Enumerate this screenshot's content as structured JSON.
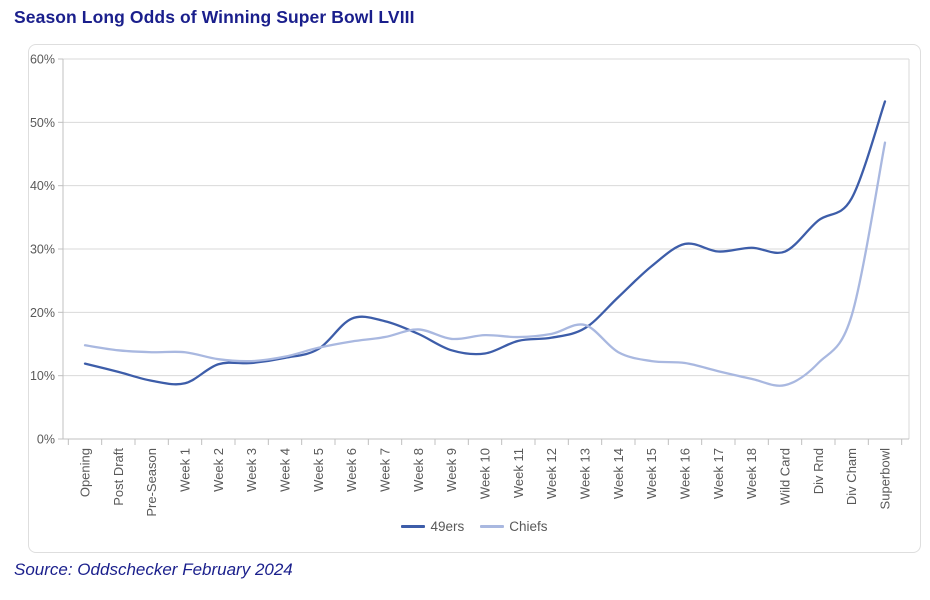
{
  "page": {
    "title": "Season Long Odds of Winning Super Bowl LVIII",
    "source": "Source: Oddschecker February 2024"
  },
  "colors": {
    "title_navy": "#1a1f8c",
    "axis_text": "#595959",
    "gridline": "#dadada",
    "axis_line": "#c0c0c0",
    "card_border": "#dedede"
  },
  "chart_data": {
    "type": "line",
    "title": "Season Long Odds of Winning Super Bowl LVIII",
    "smooth": true,
    "grid": true,
    "legend_position": "bottom",
    "x_label_rotation": -90,
    "ylim": [
      0,
      60
    ],
    "y_tick_step": 10,
    "y_tick_labels": [
      "0%",
      "10%",
      "20%",
      "30%",
      "40%",
      "50%",
      "60%"
    ],
    "categories": [
      "Opening",
      "Post Draft",
      "Pre-Season",
      "Week 1",
      "Week 2",
      "Week 3",
      "Week 4",
      "Week 5",
      "Week 6",
      "Week 7",
      "Week 8",
      "Week 9",
      "Week 10",
      "Week 11",
      "Week 12",
      "Week 13",
      "Week 14",
      "Week 15",
      "Week 16",
      "Week 17",
      "Week 18",
      "Wild Card",
      "Div Rnd",
      "Div Cham",
      "Superbowl"
    ],
    "series": [
      {
        "name": "49ers",
        "color": "#3d5da9",
        "values": [
          11.9,
          10.6,
          9.2,
          8.8,
          11.8,
          12.0,
          12.8,
          14.2,
          19.0,
          18.6,
          16.6,
          14.0,
          13.5,
          15.5,
          16.0,
          17.5,
          22.4,
          27.3,
          30.8,
          29.6,
          30.2,
          29.6,
          34.5,
          38.0,
          53.3
        ]
      },
      {
        "name": "Chiefs",
        "color": "#a9b8e0",
        "values": [
          14.8,
          14.0,
          13.7,
          13.7,
          12.6,
          12.3,
          13.0,
          14.4,
          15.4,
          16.1,
          17.3,
          15.8,
          16.4,
          16.1,
          16.6,
          18.0,
          13.7,
          12.3,
          12.0,
          10.7,
          9.5,
          8.5,
          12.0,
          19.5,
          46.8
        ]
      }
    ]
  }
}
